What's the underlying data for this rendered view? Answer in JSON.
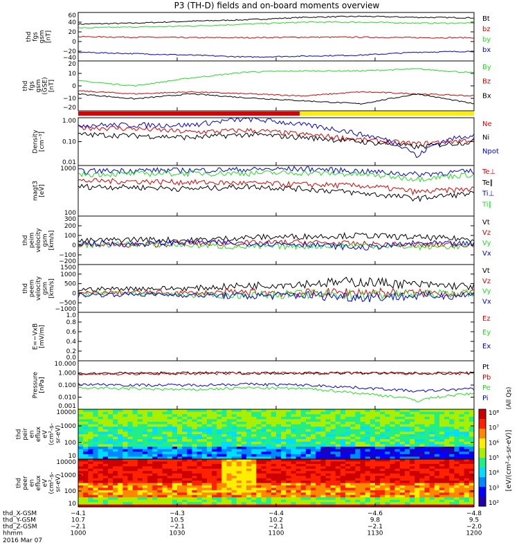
{
  "title": "P3 (TH-D) fields and on-board moments overview",
  "colors": {
    "black": "#000000",
    "red": "#dd0000",
    "green": "#22dd22",
    "blue": "#0000dd",
    "yellow": "#ffee00"
  },
  "chart_data": [
    {
      "type": "line",
      "id": "fgs_gsm",
      "ylabel": [
        "thd",
        "fgs",
        "gsm",
        "[nT]"
      ],
      "yticks": [
        "60",
        "40",
        "20",
        "0",
        "−20",
        "−40"
      ],
      "ylim": [
        -40,
        60
      ],
      "series": [
        {
          "name": "Bt",
          "color": "black",
          "values": [
            36,
            38,
            42,
            45,
            50,
            52,
            50,
            49
          ]
        },
        {
          "name": "bz",
          "color": "red",
          "values": [
            10,
            9,
            8,
            8,
            9,
            9,
            8,
            8
          ]
        },
        {
          "name": "by",
          "color": "green",
          "values": [
            28,
            30,
            32,
            36,
            40,
            40,
            38,
            38
          ]
        },
        {
          "name": "bx",
          "color": "blue",
          "values": [
            -22,
            -25,
            -28,
            -32,
            -30,
            -28,
            -22,
            -20
          ]
        }
      ]
    },
    {
      "type": "line",
      "id": "fgs_gse",
      "ylabel": [
        "thd",
        "fgs",
        "gsm",
        "(GSE)",
        "[nT]"
      ],
      "yticks": [
        "20",
        "10",
        "0",
        "−10",
        "−20"
      ],
      "ylim": [
        -25,
        25
      ],
      "series": [
        {
          "name": "By",
          "color": "green",
          "values": [
            5,
            0,
            8,
            14,
            15,
            15,
            17,
            13
          ]
        },
        {
          "name": "Bz",
          "color": "red",
          "values": [
            -5,
            -8,
            -6,
            -8,
            -10,
            -6,
            -8,
            -10
          ]
        },
        {
          "name": "Bx",
          "color": "black",
          "values": [
            -8,
            -13,
            -8,
            -12,
            -15,
            -18,
            -8,
            -18
          ]
        }
      ]
    },
    {
      "type": "line",
      "id": "density",
      "ylabel": [
        "Density",
        "[cm⁻³]"
      ],
      "yticks": [
        "1.00",
        "0.10",
        "0.01"
      ],
      "ylim": [
        0.01,
        1
      ],
      "log": true,
      "series": [
        {
          "name": "Ne",
          "color": "red",
          "values": [
            0.4,
            0.35,
            0.25,
            0.3,
            0.2,
            0.12,
            0.08,
            0.12
          ]
        },
        {
          "name": "Ni",
          "color": "black",
          "values": [
            0.2,
            0.18,
            0.15,
            0.2,
            0.15,
            0.1,
            0.06,
            0.1
          ]
        },
        {
          "name": "Npot",
          "color": "blue",
          "values": [
            0.5,
            0.5,
            0.5,
            0.9,
            0.5,
            0.2,
            0.02,
            0.2
          ]
        }
      ]
    },
    {
      "type": "line",
      "id": "temperature",
      "ylabel": [
        "magt3",
        "[eV]"
      ],
      "yticks": [
        "1000",
        "100"
      ],
      "ylim": [
        100,
        10000
      ],
      "log": true,
      "series": [
        {
          "name": "Te⊥",
          "color": "red",
          "values": [
            2500,
            2400,
            2200,
            2000,
            1800,
            1600,
            900,
            1200
          ]
        },
        {
          "name": "Te∥",
          "color": "black",
          "values": [
            1500,
            1400,
            1200,
            1500,
            1200,
            800,
            500,
            800
          ]
        },
        {
          "name": "Ti⊥",
          "color": "blue",
          "values": [
            6000,
            6500,
            6500,
            7000,
            7500,
            6000,
            4500,
            6000
          ]
        },
        {
          "name": "Ti∥",
          "color": "green",
          "values": [
            4500,
            4800,
            5000,
            5000,
            5200,
            4500,
            3000,
            4500
          ]
        }
      ]
    },
    {
      "type": "line",
      "id": "peim_velocity",
      "ylabel": [
        "thd",
        "peim",
        "velocity",
        "gsm",
        "[km/s]"
      ],
      "yticks": [
        "300",
        "200",
        "100",
        "0",
        "−100",
        "−200"
      ],
      "ylim": [
        -200,
        300
      ],
      "series": [
        {
          "name": "Vt",
          "color": "black",
          "values": [
            40,
            60,
            50,
            80,
            90,
            100,
            80,
            60
          ]
        },
        {
          "name": "Vz",
          "color": "red",
          "values": [
            10,
            0,
            20,
            20,
            30,
            10,
            0,
            10
          ]
        },
        {
          "name": "Vy",
          "color": "green",
          "values": [
            0,
            10,
            0,
            -20,
            -10,
            0,
            -20,
            -10
          ]
        },
        {
          "name": "Vx",
          "color": "blue",
          "values": [
            20,
            10,
            30,
            20,
            10,
            -30,
            20,
            10
          ]
        }
      ]
    },
    {
      "type": "line",
      "id": "peem_velocity",
      "ylabel": [
        "thd",
        "peem",
        "velocity",
        "gsm",
        "[km/s]"
      ],
      "yticks": [
        "1500",
        "1000",
        "500",
        "0",
        "−500",
        "−1000"
      ],
      "ylim": [
        -1000,
        1500
      ],
      "series": [
        {
          "name": "Vt",
          "color": "black",
          "values": [
            200,
            250,
            250,
            400,
            500,
            600,
            450,
            350
          ]
        },
        {
          "name": "Vz",
          "color": "red",
          "values": [
            0,
            50,
            0,
            50,
            0,
            50,
            0,
            0
          ]
        },
        {
          "name": "Vy",
          "color": "green",
          "values": [
            -50,
            0,
            -100,
            -100,
            -50,
            -100,
            -50,
            0
          ]
        },
        {
          "name": "Vx",
          "color": "blue",
          "values": [
            -100,
            -50,
            -100,
            -150,
            -100,
            -200,
            -150,
            -100
          ]
        }
      ]
    },
    {
      "type": "line",
      "id": "efield",
      "ylabel": [
        "E=−VxB",
        "[mV/m]"
      ],
      "yticks": [
        "1.0",
        "0.8",
        "0.6",
        "0.4",
        "0.2",
        "0.0"
      ],
      "ylim": [
        0,
        1
      ],
      "series": [
        {
          "name": "Ez",
          "color": "red",
          "values": []
        },
        {
          "name": "Ey",
          "color": "green",
          "values": []
        },
        {
          "name": "Ex",
          "color": "blue",
          "values": []
        }
      ]
    },
    {
      "type": "line",
      "id": "pressure",
      "ylabel": [
        "Pressure",
        "[nPa]"
      ],
      "yticks": [
        "10.000",
        "1.000",
        "0.100",
        "0.010",
        "0.001"
      ],
      "ylim": [
        0.001,
        10
      ],
      "log": true,
      "series": [
        {
          "name": "Pt",
          "color": "black",
          "values": [
            0.9,
            0.95,
            1,
            1,
            1,
            1,
            0.95,
            1
          ]
        },
        {
          "name": "Pb",
          "color": "red",
          "values": [
            0.8,
            0.85,
            0.9,
            0.95,
            0.95,
            0.95,
            0.9,
            0.9
          ]
        },
        {
          "name": "Pe",
          "color": "green",
          "values": [
            0.06,
            0.05,
            0.04,
            0.06,
            0.05,
            0.02,
            0.005,
            0.02
          ]
        },
        {
          "name": "Pi",
          "color": "blue",
          "values": [
            0.12,
            0.1,
            0.1,
            0.12,
            0.1,
            0.06,
            0.03,
            0.05
          ]
        }
      ]
    },
    {
      "type": "heatmap",
      "id": "peir",
      "ylabel": [
        "thd",
        "peir",
        "en",
        "eflux",
        "eV",
        "(cm²-s-",
        "sr-eV)"
      ],
      "yticks": [
        "10000",
        "1000",
        "100",
        "10"
      ],
      "log": true
    },
    {
      "type": "heatmap",
      "id": "peer",
      "ylabel": [
        "thd",
        "peer",
        "en",
        "eflux",
        "eV",
        "(cm²-s-",
        "sr-eV)"
      ],
      "yticks": [
        "10000",
        "1000",
        "100",
        "10"
      ],
      "log": true
    }
  ],
  "colorbar": {
    "ticks": [
      "10⁸",
      "10⁷",
      "10⁶",
      "10⁵",
      "10⁴",
      "10³",
      "10²"
    ],
    "label": "[eV/(cm²-s-sr-eV)]",
    "label2": "(All Qs)"
  },
  "xaxis": {
    "rows": [
      {
        "label": "thd_X-GSM",
        "values": [
          "−4.1",
          "−4.3",
          "−4.4",
          "−4.6",
          "−4.8"
        ]
      },
      {
        "label": "thd_Y-GSM",
        "values": [
          "10.7",
          "10.5",
          "10.2",
          "9.8",
          "9.5"
        ]
      },
      {
        "label": "thd_Z-GSM",
        "values": [
          "−2.1",
          "−2.1",
          "−2.1",
          "−2.1",
          "−2.0"
        ]
      },
      {
        "label": "hhmm",
        "values": [
          "1000",
          "1030",
          "1100",
          "1130",
          "1200"
        ]
      }
    ],
    "date": "2016 Mar 07"
  }
}
